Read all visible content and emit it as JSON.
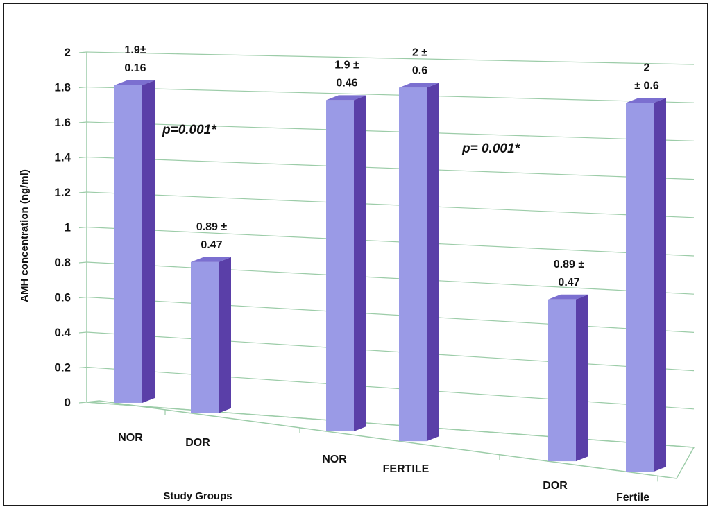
{
  "chart_data": {
    "type": "bar",
    "subtype": "3d-column",
    "xlabel": "Study Groups",
    "ylabel": "AMH concentration (ng/ml)",
    "ylim": [
      0,
      2
    ],
    "yticks": [
      "0",
      "0.2",
      "0.4",
      "0.6",
      "0.8",
      "1",
      "1.2",
      "1.4",
      "1.6",
      "1.8",
      "2"
    ],
    "categories": [
      "NOR",
      "DOR",
      "NOR",
      "FERTILE",
      "DOR",
      "Fertile"
    ],
    "values": [
      1.9,
      0.89,
      1.9,
      2,
      0.89,
      2
    ],
    "data_labels": [
      [
        "1.9±",
        "0.16"
      ],
      [
        "0.89 ±",
        "0.47"
      ],
      [
        "1.9 ±",
        "0.46"
      ],
      [
        "2 ±",
        "0.6"
      ],
      [
        "0.89 ±",
        "0.47"
      ],
      [
        "2",
        "± 0.6"
      ]
    ],
    "annotations": [
      "p=0.001*",
      "p= 0.001*"
    ],
    "grid": true,
    "colors": {
      "bar_front": "#9A9AE6",
      "bar_side": "#5A3FA8",
      "bar_top": "#7B6FD0",
      "grid": "#9CCCA8"
    }
  }
}
